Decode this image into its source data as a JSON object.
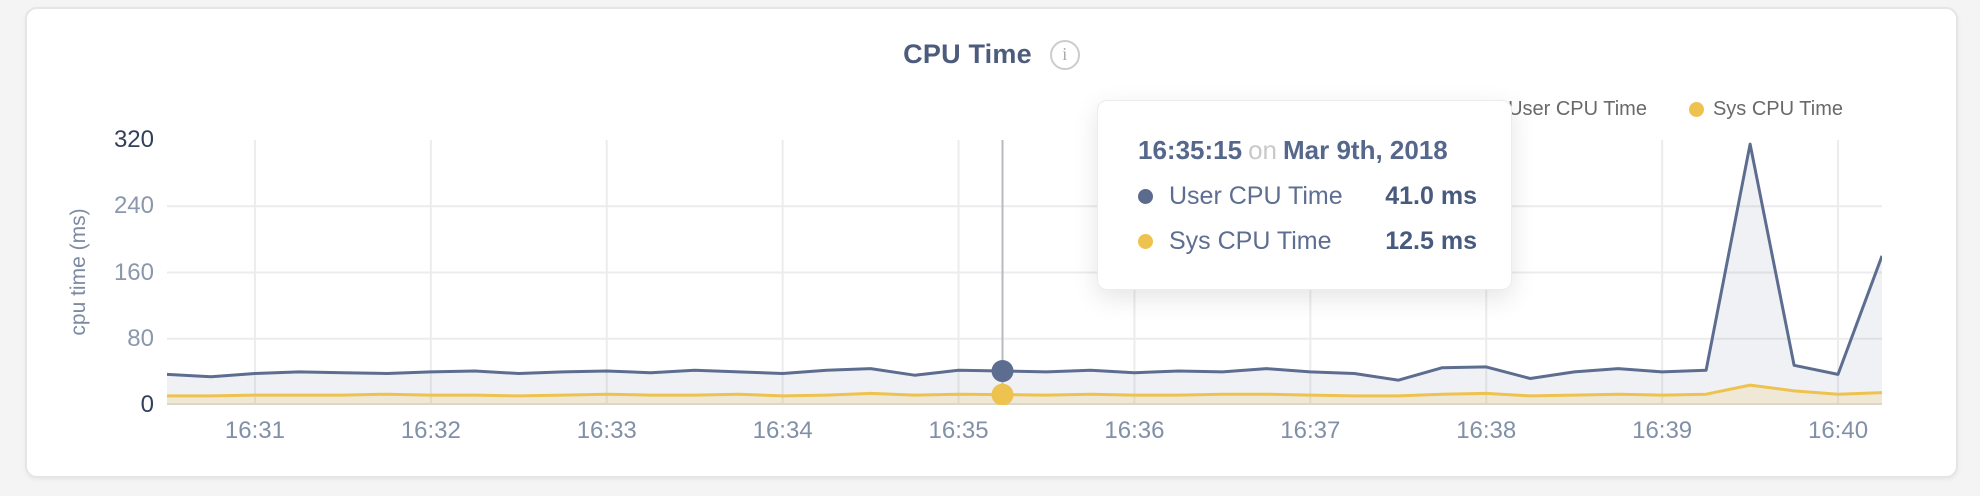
{
  "page": {
    "background_color": "#f4f4f5",
    "card_background_color": "#ffffff"
  },
  "header": {
    "title": "CPU Time",
    "info_icon_glyph": "i"
  },
  "legend": {
    "items": [
      {
        "label": "User CPU Time",
        "color": "#5b6b8d"
      },
      {
        "label": "Sys CPU Time",
        "color": "#eec24f"
      }
    ]
  },
  "tooltip": {
    "time": "16:35:15",
    "connector": "on",
    "date": "Mar 9th, 2018",
    "rows": [
      {
        "name": "User CPU Time",
        "value": "41.0 ms",
        "color": "#5b6b8d"
      },
      {
        "name": "Sys CPU Time",
        "value": "12.5 ms",
        "color": "#eec24f"
      }
    ]
  },
  "chart_data": {
    "type": "area",
    "title": "CPU Time",
    "ylabel": "cpu time (ms)",
    "xlabel": "",
    "ylim": [
      0,
      320
    ],
    "yticks": [
      320,
      240,
      160,
      80,
      0
    ],
    "yticks_emphasized": [
      320,
      0
    ],
    "xticks": [
      "16:31",
      "16:32",
      "16:33",
      "16:34",
      "16:35",
      "16:36",
      "16:37",
      "16:38",
      "16:39",
      "16:40"
    ],
    "grid": true,
    "legend_position": "top-right",
    "x": [
      "16:30:30",
      "16:30:45",
      "16:31:00",
      "16:31:15",
      "16:31:30",
      "16:31:45",
      "16:32:00",
      "16:32:15",
      "16:32:30",
      "16:32:45",
      "16:33:00",
      "16:33:15",
      "16:33:30",
      "16:33:45",
      "16:34:00",
      "16:34:15",
      "16:34:30",
      "16:34:45",
      "16:35:00",
      "16:35:15",
      "16:35:30",
      "16:35:45",
      "16:36:00",
      "16:36:15",
      "16:36:30",
      "16:36:45",
      "16:37:00",
      "16:37:15",
      "16:37:30",
      "16:37:45",
      "16:38:00",
      "16:38:15",
      "16:38:30",
      "16:38:45",
      "16:39:00",
      "16:39:15",
      "16:39:30",
      "16:39:45",
      "16:40:00",
      "16:40:15"
    ],
    "series": [
      {
        "name": "User CPU Time",
        "color": "#5d6d8f",
        "fill": "rgba(99,114,146,0.10)",
        "unit": "ms",
        "values": [
          37,
          34,
          38,
          40,
          39,
          38,
          40,
          41,
          38,
          40,
          41,
          39,
          42,
          40,
          38,
          42,
          44,
          36,
          42,
          41,
          40,
          42,
          39,
          41,
          40,
          44,
          40,
          38,
          30,
          45,
          46,
          32,
          40,
          44,
          40,
          42,
          315,
          48,
          37,
          180
        ]
      },
      {
        "name": "Sys CPU Time",
        "color": "#eec24f",
        "fill": "rgba(238,194,79,0.18)",
        "unit": "ms",
        "values": [
          11,
          11,
          12,
          12,
          12,
          13,
          12,
          12,
          11,
          12,
          13,
          12,
          12,
          13,
          11,
          12,
          14,
          12,
          13,
          12.5,
          12,
          13,
          12,
          12,
          13,
          13,
          12,
          11,
          11,
          13,
          14,
          11,
          12,
          13,
          12,
          13,
          24,
          17,
          13,
          15
        ]
      }
    ],
    "hover": {
      "time": "16:35:15",
      "user_ms": 41.0,
      "sys_ms": 12.5,
      "crosshair_color": "#b7babf"
    },
    "grid_color": "#ececec",
    "baseline_color": "#e7e7e7"
  }
}
